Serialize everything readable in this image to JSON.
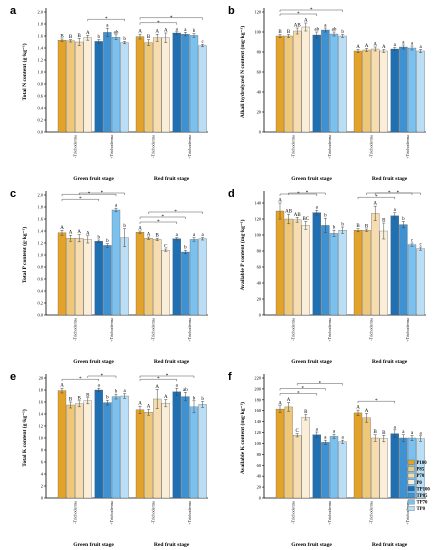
{
  "treatments": [
    "-Trichoderma",
    "+Trichoderma"
  ],
  "groups": [
    "Green fruit stage",
    "Red fruit stage"
  ],
  "legend": [
    "P100",
    "P85",
    "P70",
    "P0",
    "TP100",
    "TP85",
    "TP70",
    "TP0"
  ],
  "colors": {
    "P100": "#e3a32a",
    "P85": "#efc779",
    "P70": "#f6dcae",
    "P0": "#faeed9",
    "TP100": "#1f6fb3",
    "TP85": "#3f92d2",
    "TP70": "#7cc0ee",
    "TP0": "#b9def5"
  },
  "chart_data": [
    {
      "id": "a",
      "type": "bar",
      "panel_label": "a",
      "ylabel": "Total N content (g·kg⁻¹)",
      "ylim": [
        0.0,
        2.0
      ],
      "yticks": [
        0.0,
        0.2,
        0.4,
        0.6,
        0.8,
        1.0,
        1.2,
        1.4,
        1.6,
        1.8,
        2.0
      ],
      "tick_decimals": 1,
      "values": [
        [
          [
            1.53,
            1.52,
            1.5,
            1.57
          ],
          [
            1.51,
            1.66,
            1.58,
            1.49
          ]
        ],
        [
          [
            1.59,
            1.49,
            1.57,
            1.57
          ],
          [
            1.65,
            1.63,
            1.61,
            1.44
          ]
        ]
      ],
      "errors": [
        [
          [
            0.02,
            0.02,
            0.06,
            0.04
          ],
          [
            0.03,
            0.07,
            0.04,
            0.02
          ]
        ],
        [
          [
            0.04,
            0.05,
            0.06,
            0.08
          ],
          [
            0.02,
            0.03,
            0.03,
            0.02
          ]
        ]
      ],
      "letters": [
        [
          [
            "B",
            "B",
            "B",
            "A"
          ],
          [
            "b",
            "a",
            "ab",
            "b"
          ]
        ],
        [
          [
            "A",
            "B",
            "A",
            "A"
          ],
          [
            "a",
            "a",
            "b",
            "c"
          ]
        ]
      ],
      "brackets": [
        {
          "g": 0,
          "from": [
            0,
            3
          ],
          "to": [
            1,
            3
          ],
          "lvl": 0
        },
        {
          "g": 1,
          "from": [
            0,
            0
          ],
          "to": [
            1,
            0
          ],
          "lvl": 0
        },
        {
          "g": 1,
          "from": [
            0,
            0
          ],
          "to": [
            1,
            3
          ],
          "lvl": 1
        }
      ]
    },
    {
      "id": "b",
      "type": "bar",
      "panel_label": "b",
      "ylabel": "Alkali hydrolyzed N content (mg·kg⁻¹)",
      "ylim": [
        0,
        120
      ],
      "yticks": [
        0,
        20,
        40,
        60,
        80,
        100,
        120
      ],
      "tick_decimals": 0,
      "values": [
        [
          [
            96,
            96,
            101,
            105
          ],
          [
            97,
            102,
            98,
            96
          ]
        ],
        [
          [
            81,
            82,
            83,
            81
          ],
          [
            83,
            85,
            84,
            81
          ]
        ]
      ],
      "errors": [
        [
          [
            1.5,
            1.5,
            3,
            4
          ],
          [
            3,
            2,
            2,
            1.5
          ]
        ],
        [
          [
            1.5,
            1.5,
            2,
            1.5
          ],
          [
            1.5,
            2,
            2,
            1.5
          ]
        ]
      ],
      "letters": [
        [
          [
            "B",
            "B",
            "AB",
            "A"
          ],
          [
            "ab",
            "a",
            "ab",
            "b"
          ]
        ],
        [
          [
            "A",
            "A",
            "A",
            "A"
          ],
          [
            "a",
            "a",
            "a",
            "a"
          ]
        ]
      ],
      "brackets": [
        {
          "g": 0,
          "from": [
            0,
            0
          ],
          "to": [
            1,
            0
          ],
          "lvl": 0
        },
        {
          "g": 0,
          "from": [
            0,
            0
          ],
          "to": [
            1,
            3
          ],
          "lvl": 1
        }
      ]
    },
    {
      "id": "c",
      "type": "bar",
      "panel_label": "c",
      "ylabel": "Total P content (g·kg⁻¹)",
      "ylim": [
        0.0,
        2.0
      ],
      "yticks": [
        0.0,
        0.2,
        0.4,
        0.6,
        0.8,
        1.0,
        1.2,
        1.4,
        1.6,
        1.8,
        2.0
      ],
      "tick_decimals": 1,
      "values": [
        [
          [
            1.37,
            1.28,
            1.28,
            1.26
          ],
          [
            1.23,
            1.16,
            1.75,
            1.29
          ]
        ],
        [
          [
            1.38,
            1.28,
            1.26,
            1.08
          ],
          [
            1.27,
            1.05,
            1.26,
            1.27
          ]
        ]
      ],
      "errors": [
        [
          [
            0.04,
            0.05,
            0.06,
            0.06
          ],
          [
            0.02,
            0.03,
            0.03,
            0.15
          ]
        ],
        [
          [
            0.02,
            0.02,
            0.02,
            0.02
          ],
          [
            0.02,
            0.03,
            0.03,
            0.02
          ]
        ]
      ],
      "letters": [
        [
          [
            "A",
            "A",
            "A",
            "A"
          ],
          [
            "b",
            "b",
            "a",
            "b"
          ]
        ],
        [
          [
            "A",
            "A",
            "B",
            "C"
          ],
          [
            "a",
            "b",
            "a",
            "a"
          ]
        ]
      ],
      "brackets": [
        {
          "g": 0,
          "from": [
            0,
            0
          ],
          "to": [
            1,
            0
          ],
          "lvl": 0
        },
        {
          "g": 0,
          "from": [
            0,
            0
          ],
          "to": [
            1,
            2
          ],
          "lvl": 1
        },
        {
          "g": 0,
          "from": [
            0,
            2
          ],
          "to": [
            1,
            3
          ],
          "lvl": 2
        },
        {
          "g": 1,
          "from": [
            0,
            0
          ],
          "to": [
            1,
            0
          ],
          "lvl": 0
        },
        {
          "g": 1,
          "from": [
            0,
            0
          ],
          "to": [
            1,
            1
          ],
          "lvl": 1
        },
        {
          "g": 1,
          "from": [
            0,
            1
          ],
          "to": [
            1,
            3
          ],
          "lvl": 2
        }
      ]
    },
    {
      "id": "d",
      "type": "bar",
      "panel_label": "d",
      "ylabel": "Available P content (mg·kg⁻¹)",
      "ylim": [
        0,
        150
      ],
      "yticks": [
        0,
        20,
        40,
        60,
        80,
        100,
        120,
        140
      ],
      "tick_decimals": 0,
      "values": [
        [
          [
            130,
            120,
            119,
            112
          ],
          [
            128,
            112,
            102,
            106
          ]
        ],
        [
          [
            106,
            106,
            127,
            105
          ],
          [
            124,
            113,
            88,
            83
          ]
        ]
      ],
      "errors": [
        [
          [
            10,
            6,
            3,
            5
          ],
          [
            3,
            9,
            4,
            4
          ]
        ],
        [
          [
            2,
            1.5,
            9,
            10
          ],
          [
            4,
            4,
            2,
            2
          ]
        ]
      ],
      "letters": [
        [
          [
            "A",
            "AB",
            "AB",
            "BC"
          ],
          [
            "a",
            "b",
            "b",
            "b"
          ]
        ],
        [
          [
            "B",
            "B",
            "A",
            "B"
          ],
          [
            "a",
            "b",
            "c",
            "c"
          ]
        ]
      ],
      "brackets": [
        {
          "g": 0,
          "from": [
            0,
            0
          ],
          "to": [
            1,
            0
          ],
          "lvl": 0
        },
        {
          "g": 0,
          "from": [
            0,
            1
          ],
          "to": [
            1,
            1
          ],
          "lvl": 1
        },
        {
          "g": 1,
          "from": [
            0,
            0
          ],
          "to": [
            1,
            0
          ],
          "lvl": 0
        },
        {
          "g": 1,
          "from": [
            0,
            1
          ],
          "to": [
            1,
            2
          ],
          "lvl": 1
        },
        {
          "g": 1,
          "from": [
            0,
            2
          ],
          "to": [
            1,
            3
          ],
          "lvl": 2
        }
      ]
    },
    {
      "id": "e",
      "type": "bar",
      "panel_label": "e",
      "ylabel": "Total K content (g·kg⁻¹)",
      "ylim": [
        0,
        20
      ],
      "yticks": [
        0,
        2,
        4,
        6,
        8,
        10,
        12,
        14,
        16,
        18,
        20
      ],
      "tick_decimals": 0,
      "values": [
        [
          [
            17.9,
            15.5,
            15.7,
            16.2
          ],
          [
            18.0,
            15.9,
            16.9,
            17.0
          ]
        ],
        [
          [
            14.7,
            14.3,
            16.5,
            15.8
          ],
          [
            17.7,
            16.9,
            15.2,
            15.6
          ]
        ]
      ],
      "errors": [
        [
          [
            0.4,
            0.5,
            0.5,
            0.5
          ],
          [
            0.3,
            0.4,
            0.4,
            0.4
          ]
        ],
        [
          [
            0.6,
            0.5,
            1.6,
            0.6
          ],
          [
            0.6,
            0.7,
            1.0,
            0.5
          ]
        ]
      ],
      "letters": [
        [
          [
            "A",
            "B",
            "B",
            "B"
          ],
          [
            "a",
            "b",
            "b",
            "a"
          ]
        ],
        [
          [
            "A",
            "A",
            "A",
            "A"
          ],
          [
            "a",
            "ab",
            "b",
            "b"
          ]
        ]
      ],
      "brackets": [
        {
          "g": 0,
          "from": [
            0,
            0
          ],
          "to": [
            1,
            0
          ],
          "lvl": 0
        },
        {
          "g": 0,
          "from": [
            0,
            3
          ],
          "to": [
            1,
            2
          ],
          "lvl": 1
        },
        {
          "g": 1,
          "from": [
            0,
            0
          ],
          "to": [
            1,
            0
          ],
          "lvl": 0
        },
        {
          "g": 1,
          "from": [
            0,
            0
          ],
          "to": [
            1,
            2
          ],
          "lvl": 1
        }
      ]
    },
    {
      "id": "f",
      "type": "bar",
      "panel_label": "f",
      "ylabel": "Available K content (mg·kg⁻¹)",
      "ylim": [
        0,
        220
      ],
      "yticks": [
        0,
        20,
        40,
        60,
        80,
        100,
        120,
        140,
        160,
        180,
        200,
        220
      ],
      "tick_decimals": 0,
      "values": [
        [
          [
            163,
            167,
            115,
            148
          ],
          [
            116,
            102,
            113,
            103
          ]
        ],
        [
          [
            156,
            147,
            110,
            109
          ],
          [
            118,
            110,
            110,
            109
          ]
        ]
      ],
      "errors": [
        [
          [
            6,
            8,
            3,
            5
          ],
          [
            5,
            4,
            4,
            3
          ]
        ],
        [
          [
            5,
            8,
            6,
            6
          ],
          [
            7,
            6,
            5,
            5
          ]
        ]
      ],
      "letters": [
        [
          [
            "A",
            "A",
            "C",
            "B"
          ],
          [
            "a",
            "a",
            "a",
            "a"
          ]
        ],
        [
          [
            "A",
            "A",
            "B",
            "B"
          ],
          [
            "a",
            "a",
            "a",
            "a"
          ]
        ]
      ],
      "brackets": [
        {
          "g": 0,
          "from": [
            0,
            0
          ],
          "to": [
            1,
            0
          ],
          "lvl": 0
        },
        {
          "g": 0,
          "from": [
            0,
            0
          ],
          "to": [
            1,
            1
          ],
          "lvl": 1
        },
        {
          "g": 0,
          "from": [
            0,
            2
          ],
          "to": [
            1,
            3
          ],
          "lvl": 2
        },
        {
          "g": 1,
          "from": [
            0,
            0
          ],
          "to": [
            1,
            0
          ],
          "lvl": 0
        }
      ]
    }
  ]
}
